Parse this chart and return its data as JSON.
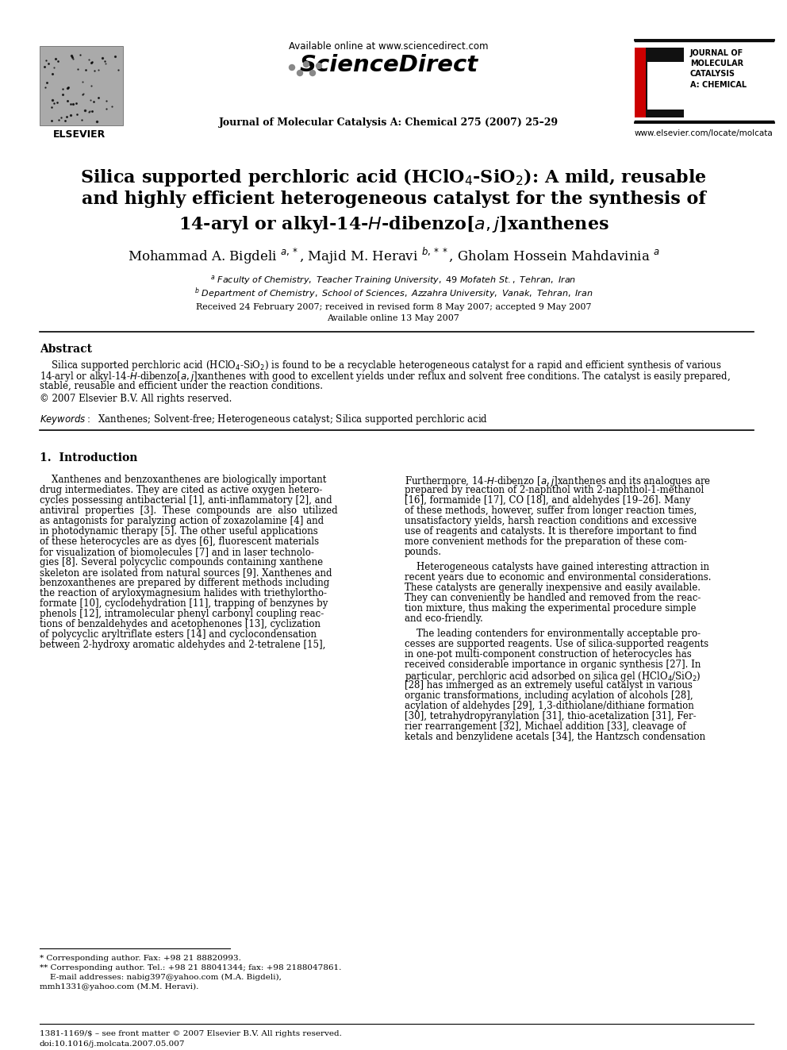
{
  "bg_color": "#ffffff",
  "header_available": "Available online at www.sciencedirect.com",
  "header_journal": "Journal of Molecular Catalysis A: Chemical 275 (2007) 25–29",
  "header_website": "www.elsevier.com/locate/molcata",
  "elsevier_label": "ELSEVIER",
  "journal_box_text": "JOURNAL OF\nMOLECULAR\nCATALYSIS\nA: CHEMICAL",
  "title1": "Silica supported perchloric acid (HClO$_4$-SiO$_2$): A mild, reusable",
  "title2": "and highly efficient heterogeneous catalyst for the synthesis of",
  "title3": "14-aryl or alkyl-14-$\\mathit{H}$-dibenzo[$\\mathit{a,j}$]xanthenes",
  "authors": "Mohammad A. Bigdeli $^{a,*}$, Majid M. Heravi $^{b,**}$, Gholam Hossein Mahdavinia $^{a}$",
  "affil_a": "$^{a}$ \\textit{Faculty of Chemistry, Teacher Training University, 49 Mofateh St., Tehran, Iran}",
  "affil_b": "$^{b}$ \\textit{Department of Chemistry, School of Sciences, Azzahra University, Vanak, Tehran, Iran}",
  "received": "Received 24 February 2007; received in revised form 8 May 2007; accepted 9 May 2007",
  "available": "Available online 13 May 2007",
  "abstract_head": "Abstract",
  "abstract_line1": "    Silica supported perchloric acid (HClO$_4$-SiO$_2$) is found to be a recyclable heterogeneous catalyst for a rapid and efficient synthesis of various",
  "abstract_line2": "14-aryl or alkyl-14-$\\mathit{H}$-dibenzo[$\\mathit{a,j}$]xanthenes with good to excellent yields under reflux and solvent free conditions. The catalyst is easily prepared,",
  "abstract_line3": "stable, reusable and efficient under the reaction conditions.",
  "copyright": "© 2007 Elsevier B.V. All rights reserved.",
  "keywords": "$\\mathit{Keywords:}$  Xanthenes; Solvent-free; Heterogeneous catalyst; Silica supported perchloric acid",
  "sec1_title": "1.  Introduction",
  "col1": [
    "    Xanthenes and benzoxanthenes are biologically important",
    "drug intermediates. They are cited as active oxygen hetero-",
    "cycles possessing antibacterial [1], anti-inflammatory [2], and",
    "antiviral  properties  [3].  These  compounds  are  also  utilized",
    "as antagonists for paralyzing action of zoxazolamine [4] and",
    "in photodynamic therapy [5]. The other useful applications",
    "of these heterocycles are as dyes [6], fluorescent materials",
    "for visualization of biomolecules [7] and in laser technolo-",
    "gies [8]. Several polycyclic compounds containing xanthene",
    "skeleton are isolated from natural sources [9]. Xanthenes and",
    "benzoxanthenes are prepared by different methods including",
    "the reaction of aryloxymagnesium halides with triethylortho-",
    "formate [10], cyclodehydration [11], trapping of benzynes by",
    "phenols [12], intramolecular phenyl carbonyl coupling reac-",
    "tions of benzaldehydes and acetophenones [13], cyclization",
    "of polycyclic aryltriflate esters [14] and cyclocondensation",
    "between 2-hydroxy aromatic aldehydes and 2-tetralene [15],"
  ],
  "col2_block1": [
    "Furthermore, 14-$\\mathit{H}$-dibenzo [$\\mathit{a,j}$]xanthenes and its analogues are",
    "prepared by reaction of 2-naphthol with 2-naphthol-1-methanol",
    "[16], formamide [17], CO [18], and aldehydes [19–26]. Many",
    "of these methods, however, suffer from longer reaction times,",
    "unsatisfactory yields, harsh reaction conditions and excessive",
    "use of reagents and catalysts. It is therefore important to find",
    "more convenient methods for the preparation of these com-",
    "pounds."
  ],
  "col2_block2": [
    "    Heterogeneous catalysts have gained interesting attraction in",
    "recent years due to economic and environmental considerations.",
    "These catalysts are generally inexpensive and easily available.",
    "They can conveniently be handled and removed from the reac-",
    "tion mixture, thus making the experimental procedure simple",
    "and eco-friendly."
  ],
  "col2_block3": [
    "    The leading contenders for environmentally acceptable pro-",
    "cesses are supported reagents. Use of silica-supported reagents",
    "in one-pot multi-component construction of heterocycles has",
    "received considerable importance in organic synthesis [27]. In",
    "particular, perchloric acid adsorbed on silica gel (HClO$_4$/SiO$_2$)",
    "[28] has immerged as an extremely useful catalyst in various",
    "organic transformations, including acylation of alcohols [28],",
    "acylation of aldehydes [29], 1,3-dithiolane/dithiane formation",
    "[30], tetrahydropyranylation [31], thio-acetalization [31], Fer-",
    "rier rearrangement [32], Michael addition [33], cleavage of",
    "ketals and benzylidene acetals [34], the Hantzsch condensation"
  ],
  "fn_line": "* Corresponding author. Fax: +98 21 88820993.",
  "fn_line2": "** Corresponding author. Tel.: +98 21 88041344; fax: +98 2188047861.",
  "fn_line3": "    E-mail addresses: nabig397@yahoo.com (M.A. Bigdeli),",
  "fn_line4": "mmh1331@yahoo.com (M.M. Heravi).",
  "footer1": "1381-1169/$ – see front matter © 2007 Elsevier B.V. All rights reserved.",
  "footer2": "doi:10.1016/j.molcata.2007.05.007"
}
